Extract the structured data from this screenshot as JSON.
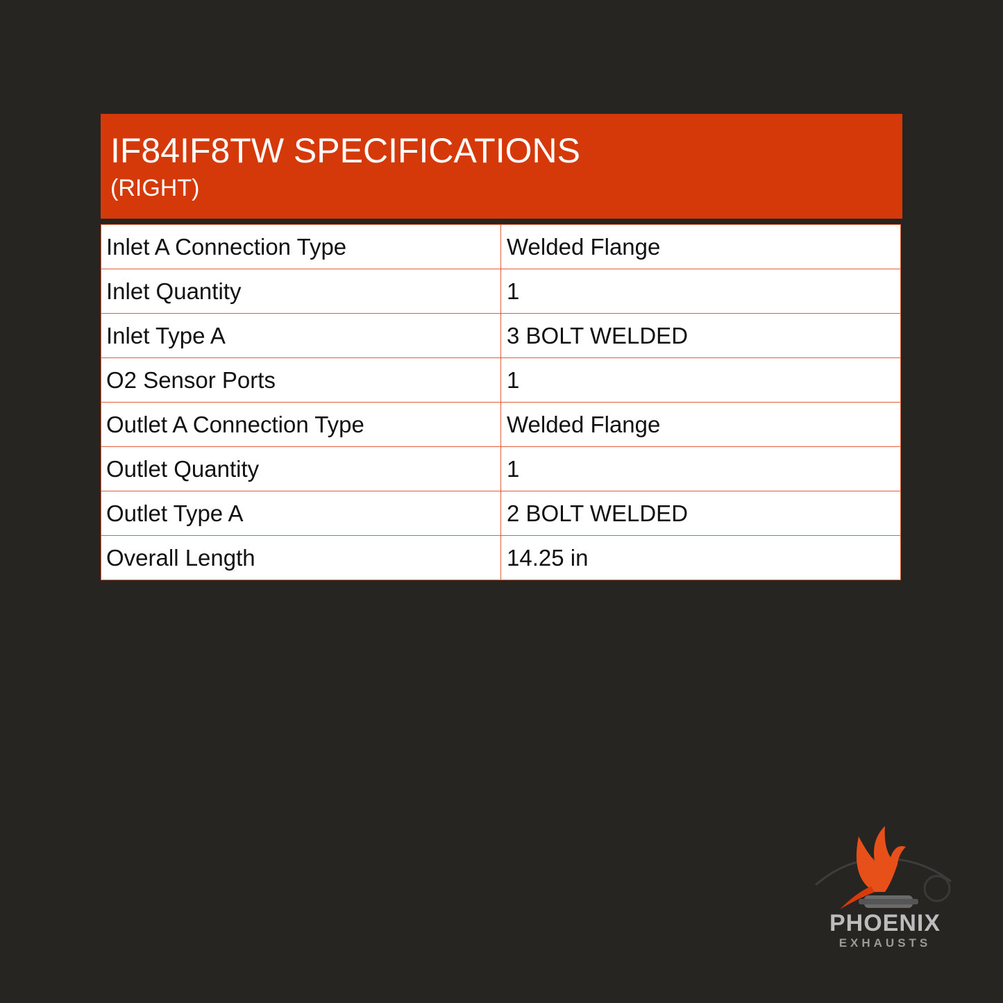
{
  "header": {
    "title": "IF84IF8TW SPECIFICATIONS",
    "subtitle": "(RIGHT)"
  },
  "specs": [
    {
      "label": "Inlet A Connection Type",
      "value": "Welded Flange"
    },
    {
      "label": "Inlet Quantity",
      "value": "1"
    },
    {
      "label": "Inlet Type A",
      "value": "3 BOLT WELDED"
    },
    {
      "label": "O2 Sensor Ports",
      "value": "1"
    },
    {
      "label": "Outlet A Connection Type",
      "value": "Welded Flange"
    },
    {
      "label": "Outlet Quantity",
      "value": "1"
    },
    {
      "label": "Outlet Type A",
      "value": "2 BOLT WELDED"
    },
    {
      "label": "Overall Length",
      "value": "14.25 in"
    }
  ],
  "logo": {
    "name": "PHOENIX",
    "tagline": "EXHAUSTS"
  },
  "colors": {
    "background": "#262521",
    "accent": "#d5390a",
    "border": "#e0603a"
  }
}
